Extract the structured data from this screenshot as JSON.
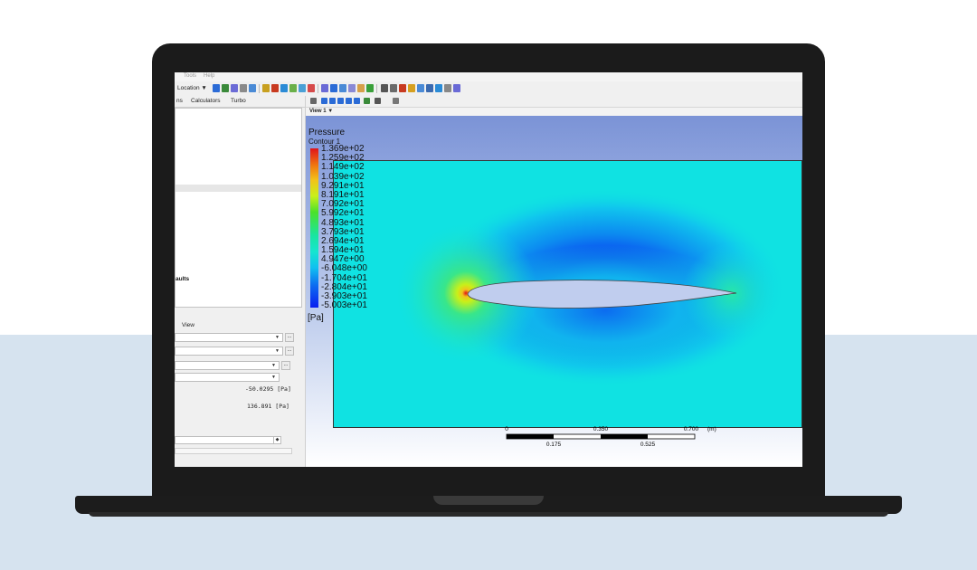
{
  "menubar": {
    "tools": "Tools",
    "help": "Help"
  },
  "toolbar": {
    "location_label": "Location ▼"
  },
  "left_panel": {
    "tabs": [
      "ns",
      "Calculators",
      "Turbo"
    ],
    "tree_partial": "aults",
    "details_tab": "View",
    "min_value": "-50.0295 [Pa]",
    "max_value": "136.891 [Pa]",
    "ellipsis": "..."
  },
  "viewer": {
    "view_label": "View 1 ▼",
    "legend": {
      "title": "Pressure",
      "subtitle": "Contour 1",
      "labels": [
        "1.369e+02",
        "1.259e+02",
        "1.149e+02",
        "1.039e+02",
        "9.291e+01",
        "8.191e+01",
        "7.092e+01",
        "5.992e+01",
        "4.893e+01",
        "3.793e+01",
        "2.694e+01",
        "1.594e+01",
        "4.947e+00",
        "-6.048e+00",
        "-1.704e+01",
        "-2.804e+01",
        "-3.903e+01",
        "-5.003e+01"
      ],
      "unit": "[Pa]"
    },
    "scale_bar": {
      "top_labels": [
        "0",
        "0.350",
        "0.700",
        "(m)"
      ],
      "bottom_labels": [
        "0.175",
        "0.525"
      ]
    }
  },
  "colors": {
    "freestream": "#10e2e2",
    "stagnation": "#e0141a",
    "suction": "#0a1ef0",
    "canvas_top": "#7b93d6"
  }
}
